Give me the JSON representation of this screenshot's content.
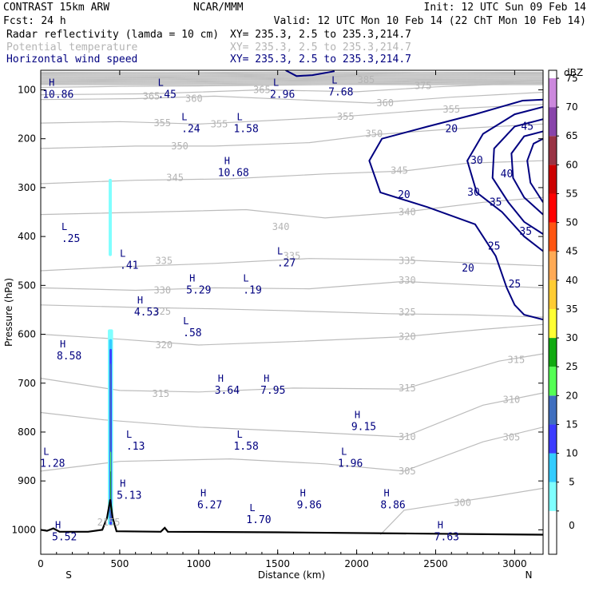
{
  "header": {
    "model": "CONTRAST 15km ARW",
    "center": "NCAR/MMM",
    "init": "Init: 12 UTC Sun 09 Feb 14",
    "fcst_label": "Fcst:",
    "fcst_value": "24 h",
    "valid": "Valid: 12 UTC Mon 10 Feb 14 (22 ChT Mon 10 Feb 14)",
    "fields": [
      {
        "name": "Radar reflectivity (lamda = 10 cm)",
        "xy": "XY= 235.3,  2.5 to 235.3,214.7",
        "color": "#000000"
      },
      {
        "name": "Potential temperature",
        "xy": "XY= 235.3,  2.5 to 235.3,214.7",
        "color": "#b4b4b4"
      },
      {
        "name": "Horizontal wind speed",
        "xy": "XY= 235.3,  2.5 to 235.3,214.7",
        "color": "#000080"
      }
    ]
  },
  "chart_data": {
    "type": "cross-section",
    "xlabel": "Distance (km)",
    "ylabel": "Pressure (hPa)",
    "xlim": [
      0,
      3180
    ],
    "ylim": [
      1050,
      60
    ],
    "x_ticks": [
      0,
      500,
      1000,
      1500,
      2000,
      2500,
      3000
    ],
    "y_ticks": [
      100,
      200,
      300,
      400,
      500,
      600,
      700,
      800,
      900,
      1000
    ],
    "x_end_labels": {
      "left": "S",
      "right": "N"
    },
    "colorbar": {
      "units": "dBZ",
      "levels": [
        0,
        5,
        10,
        15,
        20,
        25,
        30,
        35,
        40,
        45,
        50,
        55,
        60,
        65,
        70,
        75
      ],
      "colors": [
        "#ffffff",
        "#7fffff",
        "#33ccff",
        "#3c3cff",
        "#3f6fbf",
        "#55ff55",
        "#11aa11",
        "#ffff33",
        "#ffcc33",
        "#ffaa55",
        "#ff5511",
        "#ff0000",
        "#cc0000",
        "#993344",
        "#8844aa",
        "#cc88dd"
      ]
    },
    "theta_labels": [
      {
        "v": "385",
        "x": 2060,
        "p": 80
      },
      {
        "v": "375",
        "x": 2420,
        "p": 92
      },
      {
        "v": "365",
        "x": 1400,
        "p": 100
      },
      {
        "v": "365",
        "x": 700,
        "p": 113
      },
      {
        "v": "360",
        "x": 970,
        "p": 118
      },
      {
        "v": "360",
        "x": 2180,
        "p": 127
      },
      {
        "v": "355",
        "x": 770,
        "p": 168
      },
      {
        "v": "355",
        "x": 1130,
        "p": 170
      },
      {
        "v": "355",
        "x": 1930,
        "p": 155
      },
      {
        "v": "355",
        "x": 2600,
        "p": 140
      },
      {
        "v": "350",
        "x": 880,
        "p": 215
      },
      {
        "v": "350",
        "x": 2110,
        "p": 190
      },
      {
        "v": "345",
        "x": 850,
        "p": 280
      },
      {
        "v": "345",
        "x": 2270,
        "p": 265
      },
      {
        "v": "340",
        "x": 1520,
        "p": 380
      },
      {
        "v": "340",
        "x": 2320,
        "p": 350
      },
      {
        "v": "335",
        "x": 780,
        "p": 450
      },
      {
        "v": "335",
        "x": 1590,
        "p": 440
      },
      {
        "v": "335",
        "x": 2320,
        "p": 450
      },
      {
        "v": "330",
        "x": 770,
        "p": 510
      },
      {
        "v": "330",
        "x": 2320,
        "p": 490
      },
      {
        "v": "325",
        "x": 770,
        "p": 553
      },
      {
        "v": "325",
        "x": 2320,
        "p": 555
      },
      {
        "v": "320",
        "x": 780,
        "p": 622
      },
      {
        "v": "320",
        "x": 2320,
        "p": 605
      },
      {
        "v": "315",
        "x": 760,
        "p": 722
      },
      {
        "v": "315",
        "x": 2320,
        "p": 710
      },
      {
        "v": "315",
        "x": 3010,
        "p": 652
      },
      {
        "v": "310",
        "x": 2320,
        "p": 810
      },
      {
        "v": "310",
        "x": 2980,
        "p": 734
      },
      {
        "v": "305",
        "x": 2320,
        "p": 880
      },
      {
        "v": "305",
        "x": 2980,
        "p": 811
      },
      {
        "v": "300",
        "x": 2670,
        "p": 945
      }
    ],
    "wind_labels": [
      {
        "v": "20",
        "x": 2600,
        "p": 180
      },
      {
        "v": "20",
        "x": 2300,
        "p": 315
      },
      {
        "v": "20",
        "x": 2705,
        "p": 465
      },
      {
        "v": "25",
        "x": 2870,
        "p": 420
      },
      {
        "v": "25",
        "x": 3000,
        "p": 498
      },
      {
        "v": "30",
        "x": 2760,
        "p": 245
      },
      {
        "v": "30",
        "x": 2740,
        "p": 310
      },
      {
        "v": "35",
        "x": 2880,
        "p": 330
      },
      {
        "v": "35",
        "x": 3070,
        "p": 390
      },
      {
        "v": "40",
        "x": 2950,
        "p": 272
      },
      {
        "v": "45",
        "x": 3080,
        "p": 175
      }
    ],
    "hl_labels": [
      {
        "t": "H",
        "n": "10.86",
        "x": 110,
        "p": 95
      },
      {
        "t": "L",
        "n": ".45",
        "x": 800,
        "p": 95
      },
      {
        "t": "L",
        "n": "2.96",
        "x": 1530,
        "p": 95
      },
      {
        "t": "L",
        "n": "7.68",
        "x": 1900,
        "p": 90
      },
      {
        "t": "L",
        "n": ".24",
        "x": 950,
        "p": 165
      },
      {
        "t": "L",
        "n": "1.58",
        "x": 1300,
        "p": 165
      },
      {
        "t": "H",
        "n": "10.68",
        "x": 1220,
        "p": 255
      },
      {
        "t": "L",
        "n": ".25",
        "x": 190,
        "p": 390
      },
      {
        "t": "L",
        "n": ".41",
        "x": 560,
        "p": 445
      },
      {
        "t": "L",
        "n": ".27",
        "x": 1555,
        "p": 440
      },
      {
        "t": "H",
        "n": "5.29",
        "x": 1000,
        "p": 495
      },
      {
        "t": "L",
        "n": ".19",
        "x": 1340,
        "p": 495
      },
      {
        "t": "H",
        "n": "4.53",
        "x": 670,
        "p": 540
      },
      {
        "t": "L",
        "n": ".58",
        "x": 960,
        "p": 583
      },
      {
        "t": "H",
        "n": "8.58",
        "x": 180,
        "p": 630
      },
      {
        "t": "H",
        "n": "3.64",
        "x": 1180,
        "p": 700
      },
      {
        "t": "H",
        "n": "7.95",
        "x": 1470,
        "p": 700
      },
      {
        "t": "H",
        "n": "9.15",
        "x": 2045,
        "p": 775
      },
      {
        "t": "L",
        "n": ".13",
        "x": 600,
        "p": 815
      },
      {
        "t": "L",
        "n": "1.58",
        "x": 1300,
        "p": 815
      },
      {
        "t": "L",
        "n": "1.28",
        "x": 75,
        "p": 850
      },
      {
        "t": "L",
        "n": "1.96",
        "x": 1960,
        "p": 850
      },
      {
        "t": "H",
        "n": "5.13",
        "x": 560,
        "p": 915
      },
      {
        "t": "H",
        "n": "6.27",
        "x": 1070,
        "p": 935
      },
      {
        "t": "L",
        "n": "1.70",
        "x": 1380,
        "p": 965
      },
      {
        "t": "H",
        "n": "9.86",
        "x": 1700,
        "p": 935
      },
      {
        "t": "H",
        "n": "8.86",
        "x": 2230,
        "p": 935
      },
      {
        "t": "H",
        "n": "5.52",
        "x": 150,
        "p": 1000
      },
      {
        "t": "H",
        "n": "7.63",
        "x": 2570,
        "p": 1000
      }
    ],
    "terrain_label": "2155"
  }
}
